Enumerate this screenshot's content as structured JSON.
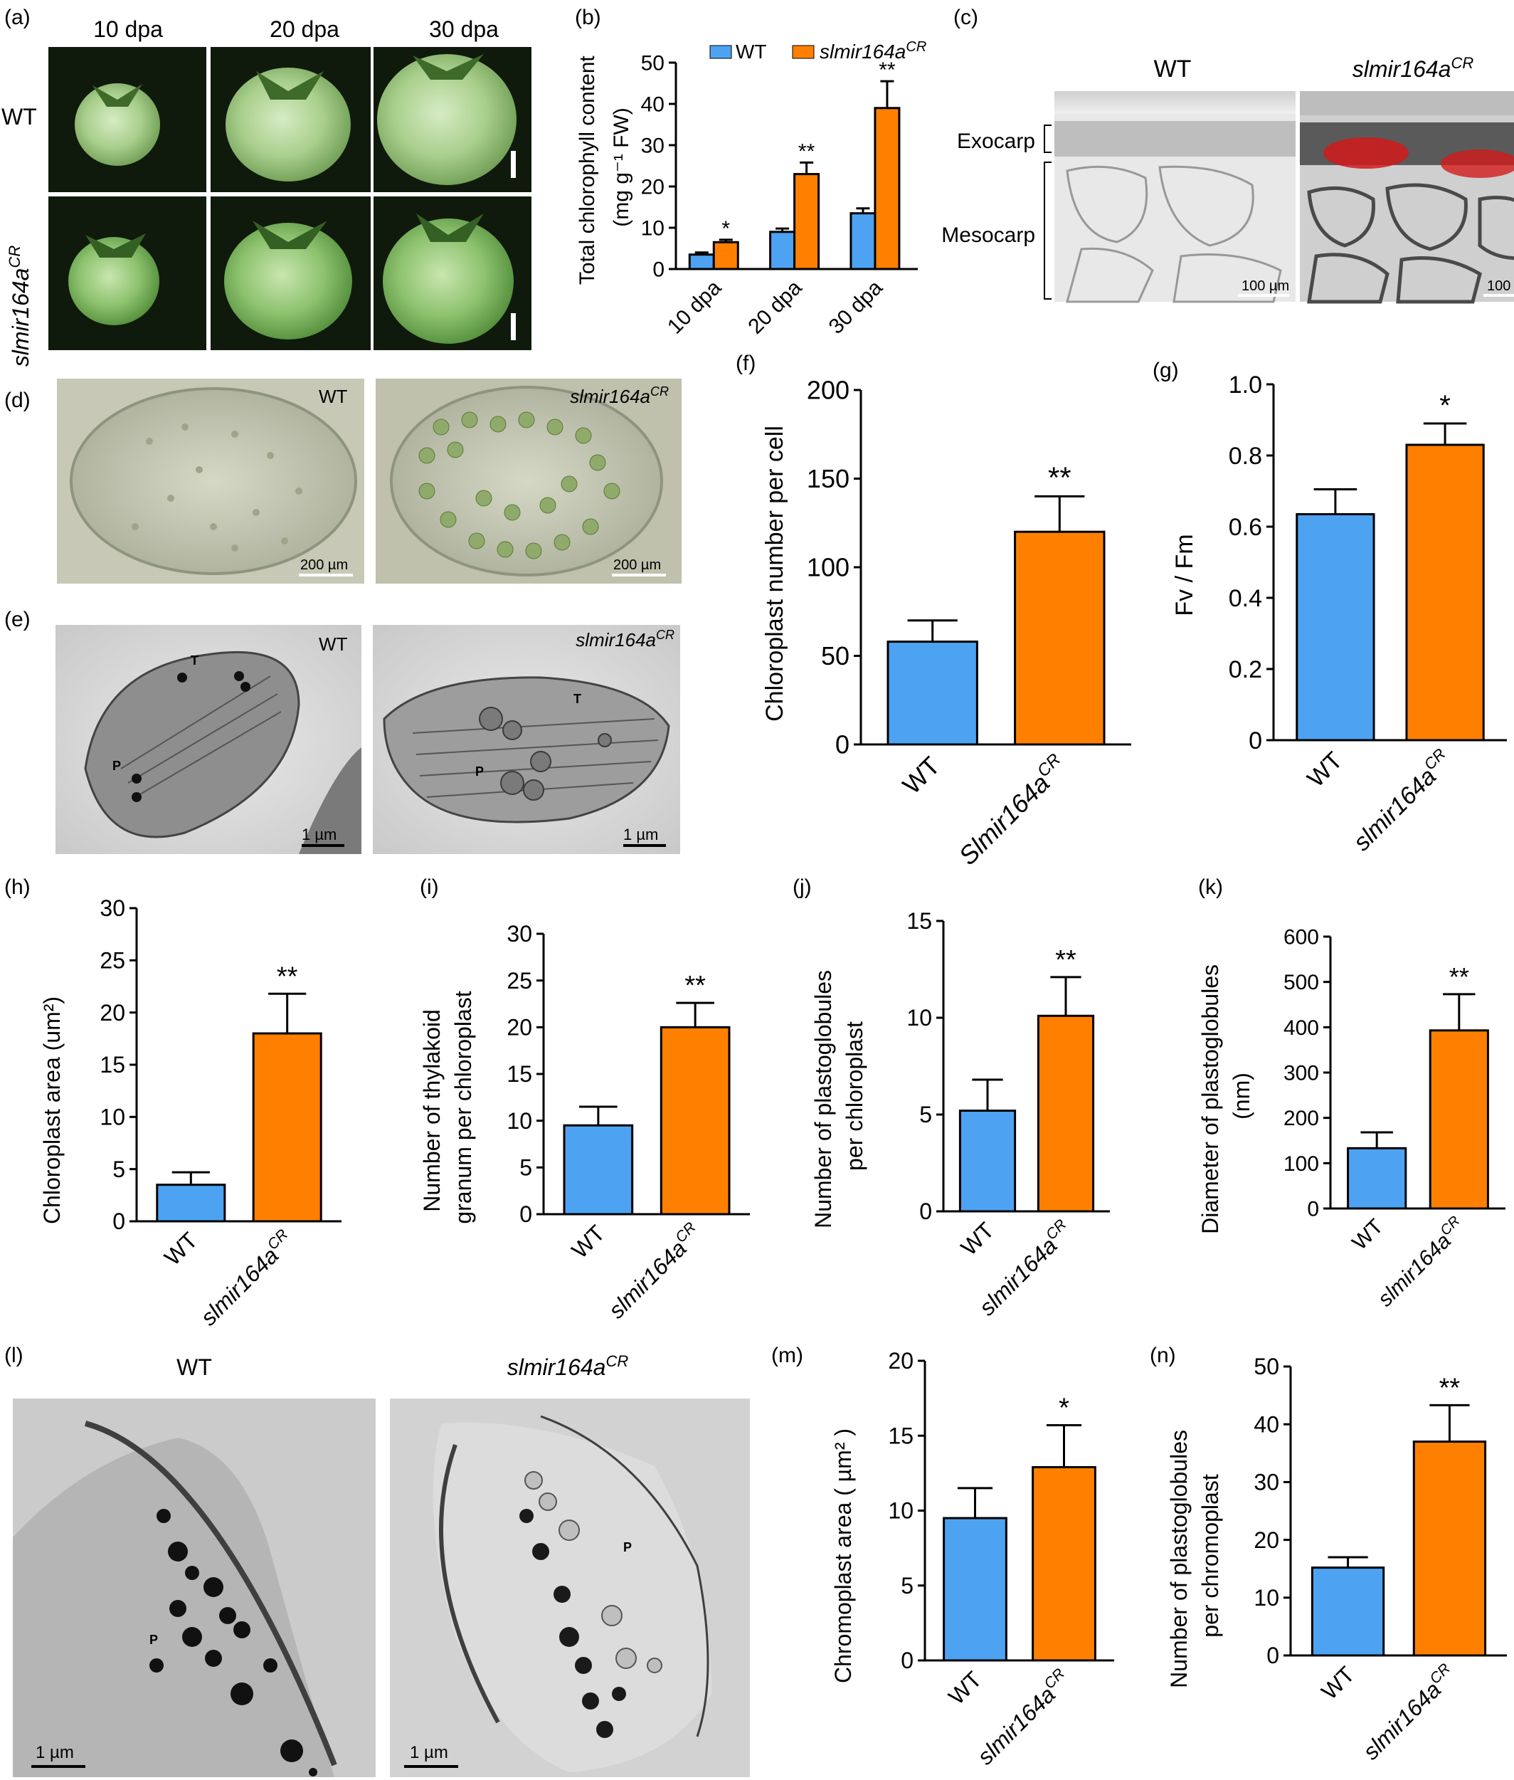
{
  "colors": {
    "wt": "#4da3f2",
    "mut": "#ff8000",
    "axis": "#000000"
  },
  "panel_letters": [
    "(a)",
    "(b)",
    "(c)",
    "(d)",
    "(e)",
    "(f)",
    "(g)",
    "(h)",
    "(i)",
    "(j)",
    "(k)",
    "(l)",
    "(m)",
    "(n)"
  ],
  "genotype_wt": "WT",
  "genotype_mut": "slmir164a",
  "genotype_mut_cap": "Slmir164a",
  "genotype_sup": "CR",
  "panel_a": {
    "stages": [
      "10 dpa",
      "20 dpa",
      "30 dpa"
    ],
    "rows": [
      "WT",
      "slmir164a"
    ]
  },
  "panel_c": {
    "exocarp": "Exocarp",
    "mesocarp": "Mesocarp",
    "scale": "100 µm"
  },
  "panel_d": {
    "scale": "200 µm"
  },
  "panel_e": {
    "scale": "1 µm",
    "t": "T",
    "p": "P"
  },
  "panel_l": {
    "scale": "1 µm",
    "p": "P"
  },
  "chart_data": [
    {
      "panel": "b",
      "type": "bar",
      "ylabel_line1": "Total chlorophyll content",
      "ylabel_line2": "(mg g⁻¹ FW)",
      "categories": [
        "10 dpa",
        "20 dpa",
        "30 dpa"
      ],
      "ylim": [
        0,
        50
      ],
      "yticks": [
        0,
        10,
        20,
        30,
        40,
        50
      ],
      "legend": [
        "WT",
        "slmir164a"
      ],
      "legend_placement": "top",
      "series": [
        {
          "name": "WT",
          "values": [
            3.5,
            9,
            13.5
          ],
          "err": [
            0.5,
            0.8,
            1.2
          ]
        },
        {
          "name": "slmir164a",
          "values": [
            6.5,
            23,
            39
          ],
          "err": [
            0.6,
            2.8,
            6.5
          ]
        }
      ],
      "sig": [
        "*",
        "**",
        "**"
      ]
    },
    {
      "panel": "f",
      "type": "bar",
      "ylabel": "Chloroplast number per cell",
      "categories": [
        "WT",
        "Slmir164a"
      ],
      "ylim": [
        0,
        200
      ],
      "yticks": [
        0,
        50,
        100,
        150,
        200
      ],
      "values": [
        58,
        120
      ],
      "err": [
        12,
        20
      ],
      "sig": "**"
    },
    {
      "panel": "g",
      "type": "bar",
      "ylabel": "Fv / Fm",
      "categories": [
        "WT",
        "slmir164a"
      ],
      "ylim": [
        0,
        1.0
      ],
      "yticks": [
        "0",
        "0.2",
        "0.4",
        "0.6",
        "0.8",
        "1.0"
      ],
      "values": [
        0.635,
        0.83
      ],
      "err": [
        0.07,
        0.06
      ],
      "sig": "*"
    },
    {
      "panel": "h",
      "type": "bar",
      "ylabel": "Chloroplast area (um²)",
      "categories": [
        "WT",
        "slmir164a"
      ],
      "ylim": [
        0,
        30
      ],
      "yticks": [
        0,
        5,
        10,
        15,
        20,
        25,
        30
      ],
      "values": [
        3.5,
        18
      ],
      "err": [
        1.2,
        3.8
      ],
      "sig": "**"
    },
    {
      "panel": "i",
      "type": "bar",
      "ylabel_line1": "Number of thylakoid",
      "ylabel_line2": "granum per chloroplast",
      "categories": [
        "WT",
        "slmir164a"
      ],
      "ylim": [
        0,
        30
      ],
      "yticks": [
        0,
        5,
        10,
        15,
        20,
        25,
        30
      ],
      "values": [
        9.5,
        20
      ],
      "err": [
        2,
        2.6
      ],
      "sig": "**"
    },
    {
      "panel": "j",
      "type": "bar",
      "ylabel_line1": "Number of plastoglobules",
      "ylabel_line2": "per chloroplast",
      "categories": [
        "WT",
        "slmir164a"
      ],
      "ylim": [
        0,
        15
      ],
      "yticks": [
        0,
        5,
        10,
        15
      ],
      "values": [
        5.2,
        10.1
      ],
      "err": [
        1.6,
        2
      ],
      "sig": "**"
    },
    {
      "panel": "k",
      "type": "bar",
      "ylabel_line1": "Diameter of plastoglobules",
      "ylabel_line2": "(nm)",
      "categories": [
        "WT",
        "slmir164a"
      ],
      "ylim": [
        0,
        600
      ],
      "yticks": [
        0,
        100,
        200,
        300,
        400,
        500,
        600
      ],
      "values": [
        133,
        393
      ],
      "err": [
        35,
        80
      ],
      "sig": "**"
    },
    {
      "panel": "m",
      "type": "bar",
      "ylabel": "Chromoplast area ( µm² )",
      "categories": [
        "WT",
        "slmir164a"
      ],
      "ylim": [
        0,
        20
      ],
      "yticks": [
        0,
        5,
        10,
        15,
        20
      ],
      "values": [
        9.5,
        12.9
      ],
      "err": [
        2,
        2.8
      ],
      "sig": "*"
    },
    {
      "panel": "n",
      "type": "bar",
      "ylabel_line1": "Number of plastoglobules",
      "ylabel_line2": "per chromoplast",
      "categories": [
        "WT",
        "slmir164a"
      ],
      "ylim": [
        0,
        50
      ],
      "yticks": [
        0,
        10,
        20,
        30,
        40,
        50
      ],
      "values": [
        15.2,
        37
      ],
      "err": [
        1.8,
        6.3
      ],
      "sig": "**"
    }
  ]
}
